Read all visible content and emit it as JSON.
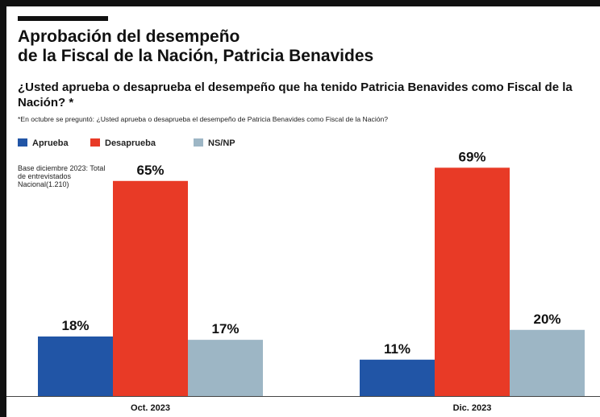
{
  "title_line1": "Aprobación del desempeño",
  "title_line2": "de la Fiscal de la Nación, Patricia Benavides",
  "question": "¿Usted aprueba o desaprueba el desempeño que ha tenido Patricia Benavides como Fiscal de la Nación? *",
  "footnote": "*En octubre se preguntó: ¿Usted aprueba o desaprueba el desempeño de Patricia Benavides como Fiscal de la Nación?",
  "base_note": "Base diciembre 2023: Total de entrevistados Nacional(1.210)",
  "colors": {
    "aprueba": "#2155a6",
    "desaprueba": "#e83a26",
    "nsnp": "#9db6c5"
  },
  "chart_data": {
    "type": "bar",
    "categories": [
      "Oct. 2023",
      "Dic. 2023"
    ],
    "series": [
      {
        "name": "Aprueba",
        "values": [
          18,
          11
        ],
        "labels": [
          "18%",
          "11%"
        ]
      },
      {
        "name": "Desaprueba",
        "values": [
          65,
          69
        ],
        "labels": [
          "65%",
          "69%"
        ]
      },
      {
        "name": "NS/NP",
        "values": [
          17,
          20
        ],
        "labels": [
          "17%",
          "20%"
        ]
      }
    ],
    "ylim": [
      0,
      72
    ],
    "legend_position": "top-left",
    "grid": false
  }
}
